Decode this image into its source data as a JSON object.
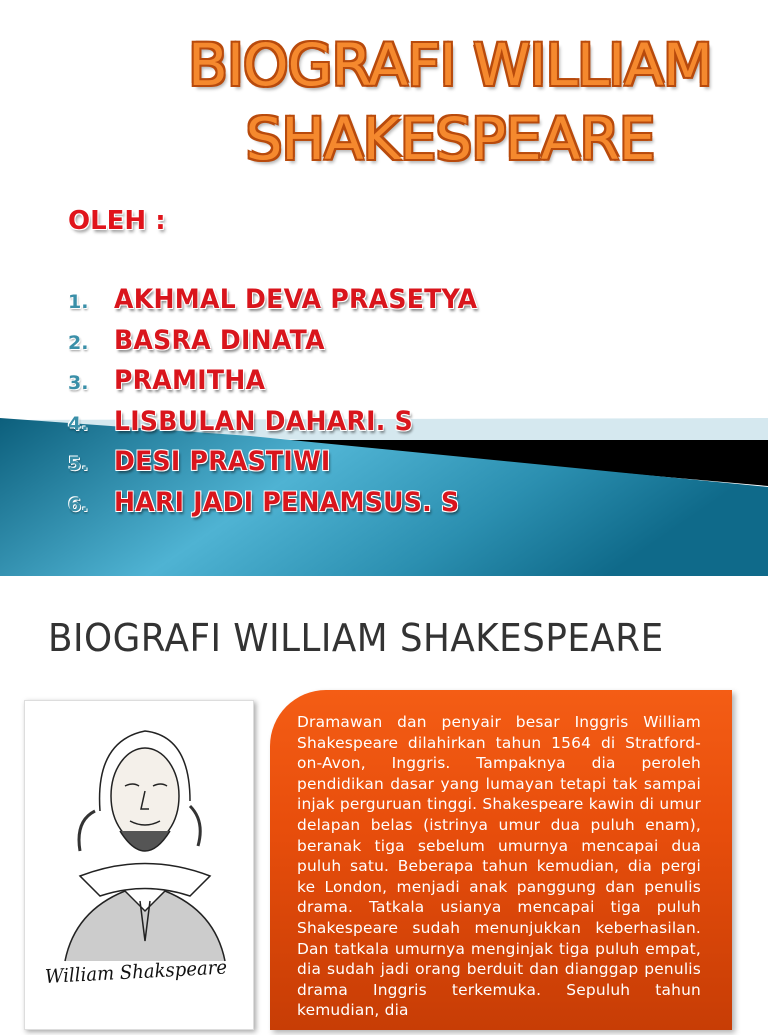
{
  "slide1": {
    "title": "BIOGRAFI WILLIAM SHAKESPEARE",
    "by_label": "OLEH :",
    "members": [
      {
        "num": "1.",
        "name": "AKHMAL DEVA PRASETYA"
      },
      {
        "num": "2.",
        "name": "BASRA DINATA"
      },
      {
        "num": "3.",
        "name": "PRAMITHA"
      },
      {
        "num": "4.",
        "name": "LISBULAN DAHARI. S"
      },
      {
        "num": "5.",
        "name": "DESI PRASTIWI"
      },
      {
        "num": "6.",
        "name": "HARI JADI PENAMSUS. S"
      }
    ],
    "colors": {
      "title": "#f5892e",
      "names": "#d9151c",
      "band": "#1f7f9e"
    }
  },
  "slide2": {
    "title": "BIOGRAFI WILLIAM SHAKESPEARE",
    "portrait_signature": "William Shakspeare",
    "body": "Dramawan dan penyair besar Inggris William Shakespeare dilahirkan tahun 1564 di Stratford-on-Avon, Inggris. Tampaknya dia peroleh pendidikan dasar yang lumayan tetapi tak sampai injak perguruan tinggi. Shakespeare kawin di umur delapan belas (istrinya umur dua puluh enam), beranak tiga sebelum umurnya mencapai dua puluh satu. Beberapa tahun kemudian, dia pergi ke London, menjadi anak panggung dan penulis drama. Tatkala usianya mencapai tiga puluh Shakespeare sudah menunjukkan keberhasilan. Dan tatkala umurnya menginjak tiga puluh empat, dia sudah jadi orang berduit dan dianggap penulis drama Inggris terkemuka. Sepuluh tahun kemudian, dia",
    "colors": {
      "box": "#e8500c"
    }
  }
}
